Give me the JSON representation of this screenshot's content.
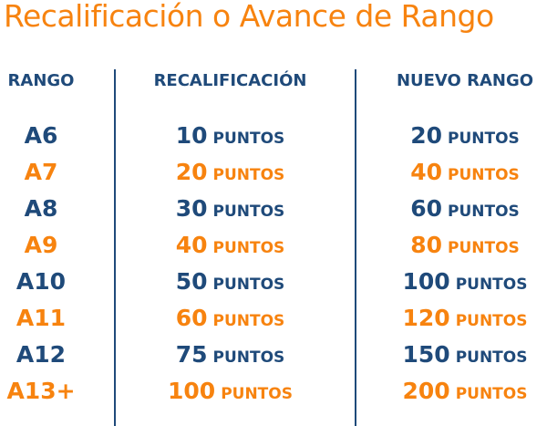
{
  "title": "Recalificación o Avance de Rango",
  "colors": {
    "orange": "#f7830f",
    "navy": "#1f4a7a"
  },
  "headers": [
    "RANGO",
    "RECALIFICACIÓN",
    "NUEVO RANGO"
  ],
  "unit": "PUNTOS",
  "rows": [
    {
      "rango": "A6",
      "recalificacion": "10",
      "nuevo": "20"
    },
    {
      "rango": "A7",
      "recalificacion": "20",
      "nuevo": "40"
    },
    {
      "rango": "A8",
      "recalificacion": "30",
      "nuevo": "60"
    },
    {
      "rango": "A9",
      "recalificacion": "40",
      "nuevo": "80"
    },
    {
      "rango": "A10",
      "recalificacion": "50",
      "nuevo": "100"
    },
    {
      "rango": "A11",
      "recalificacion": "60",
      "nuevo": "120"
    },
    {
      "rango": "A12",
      "recalificacion": "75",
      "nuevo": "150"
    },
    {
      "rango": "A13+",
      "recalificacion": "100",
      "nuevo": "200"
    }
  ]
}
